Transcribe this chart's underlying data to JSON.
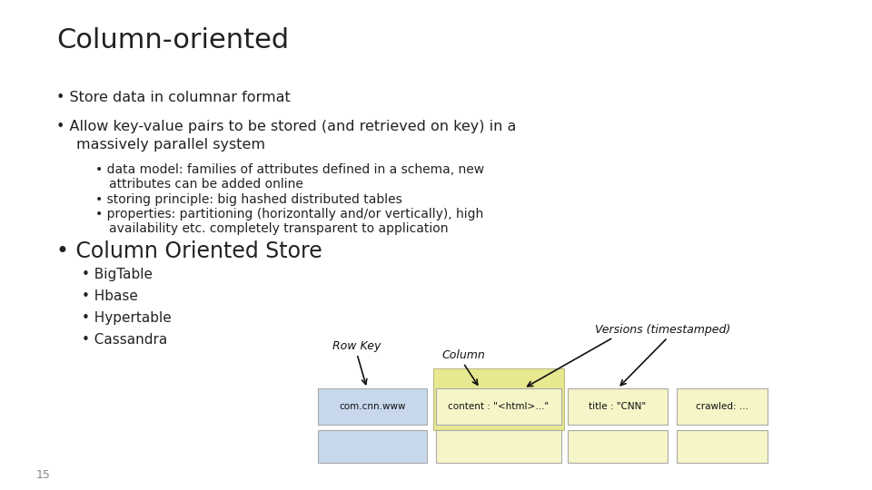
{
  "title": "Column-oriented",
  "title_fontsize": 22,
  "background_color": "#ffffff",
  "text_color": "#222222",
  "bullet1": "Store data in columnar format",
  "bullet2_line1": "Allow key-value pairs to be stored (and retrieved on key) in a",
  "bullet2_line2": "massively parallel system",
  "sub1_line1": "data model: families of attributes defined in a schema, new",
  "sub1_line2": "attributes can be added online",
  "sub2": "storing principle: big hashed distributed tables",
  "sub3_line1": "properties: partitioning (horizontally and/or vertically), high",
  "sub3_line2": "availability etc. completely transparent to application",
  "bullet3": "Column Oriented Store",
  "bullet3_fontsize": 17,
  "items": [
    "BigTable",
    "Hbase",
    "Hypertable",
    "Cassandra"
  ],
  "diagram": {
    "row_key_label": "Row Key",
    "column_label": "Column",
    "versions_label": "Versions (timestamped)",
    "cell_row1": [
      "com.cnn.www",
      "content : \"<html>...\"",
      "title : \"CNN\"",
      "crawled: ..."
    ],
    "row_key_color": "#c8d8ec",
    "col_color": "#f5f5c8",
    "col_highlight_color": "#e8e890"
  },
  "page_number": "15"
}
